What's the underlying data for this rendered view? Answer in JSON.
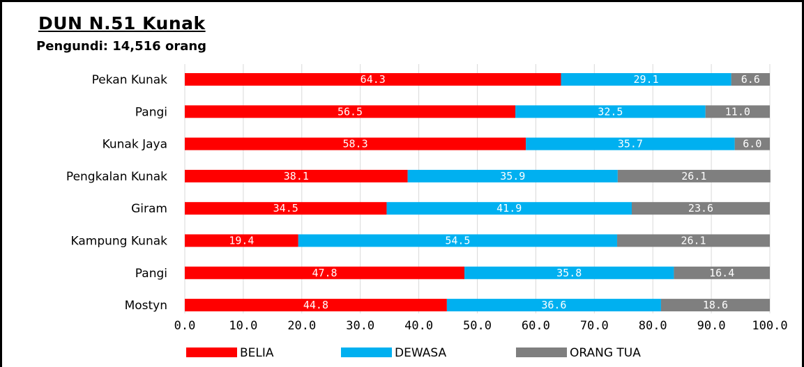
{
  "chart_data": {
    "type": "bar",
    "orientation": "horizontal",
    "stacked": true,
    "title": "DUN N.51 Kunak",
    "subtitle": "Pengundi: 14,516 orang",
    "categories": [
      "Pekan Kunak",
      "Pangi",
      "Kunak Jaya",
      "Pengkalan Kunak",
      "Giram",
      "Kampung Kunak",
      "Pangi",
      "Mostyn"
    ],
    "series": [
      {
        "name": "BELIA",
        "color": "#ff0000",
        "values": [
          64.3,
          56.5,
          58.3,
          38.1,
          34.5,
          19.4,
          47.8,
          44.8
        ]
      },
      {
        "name": "DEWASA",
        "color": "#00b0f0",
        "values": [
          29.1,
          32.5,
          35.7,
          35.9,
          41.9,
          54.5,
          35.8,
          36.6
        ]
      },
      {
        "name": "ORANG TUA",
        "color": "#7f7f7f",
        "values": [
          6.6,
          11.0,
          6.0,
          26.1,
          23.6,
          26.1,
          16.4,
          18.6
        ]
      }
    ],
    "xlim": [
      0,
      100
    ],
    "xticks": [
      "0.0",
      "10.0",
      "20.0",
      "30.0",
      "40.0",
      "50.0",
      "60.0",
      "70.0",
      "80.0",
      "90.0",
      "100.0"
    ],
    "grid": true,
    "legend": "bottom"
  }
}
